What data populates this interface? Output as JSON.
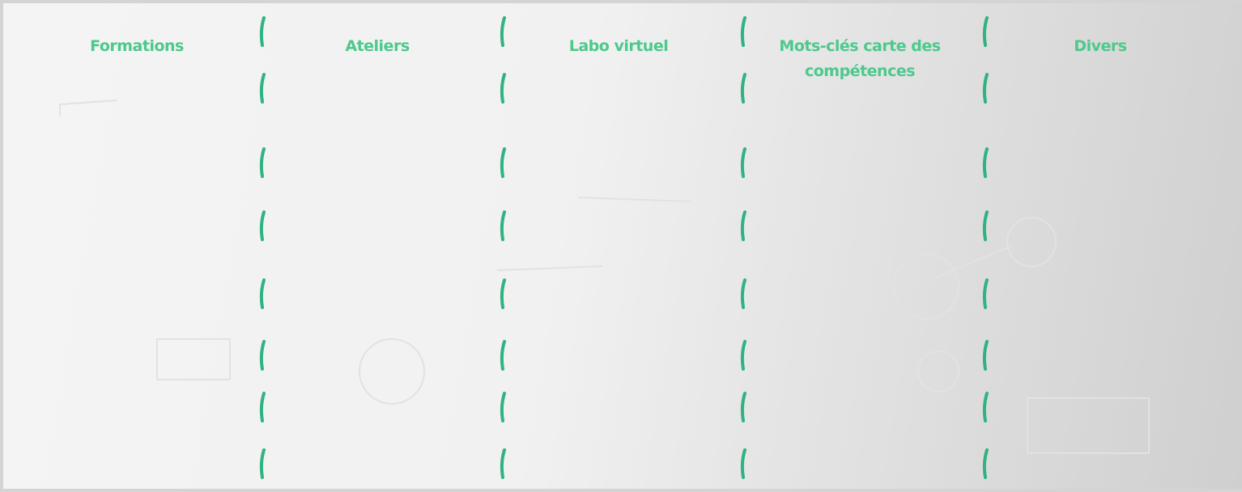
{
  "columns": [
    {
      "label": "Formations"
    },
    {
      "label": "Ateliers"
    },
    {
      "label": "Labo virtuel"
    },
    {
      "label": "Mots-clés carte des compétences"
    },
    {
      "label": "Divers"
    }
  ]
}
